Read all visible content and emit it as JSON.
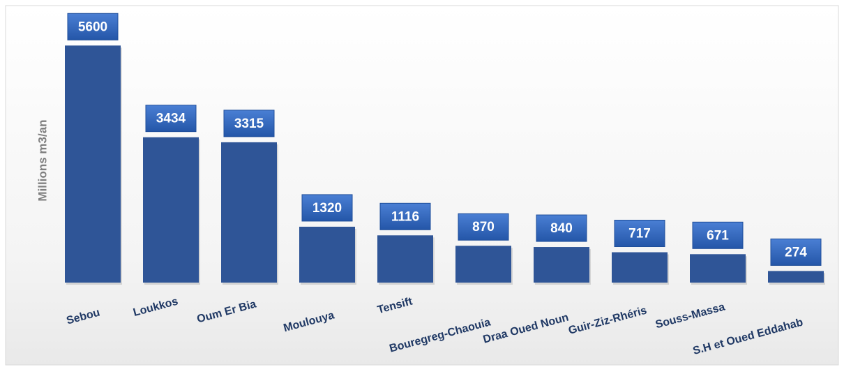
{
  "chart_data": {
    "type": "bar",
    "y_label": "Millions m3/an",
    "categories": [
      "Sebou",
      "Loukkos",
      "Oum Er Bia",
      "Moulouya",
      "Tensift",
      "Bouregreg-Chaouia",
      "Draa Oued Noun",
      "Guir-Ziz-Rhéris",
      "Souss-Massa",
      "S.H et Oued Eddahab"
    ],
    "values": [
      5600,
      3434,
      3315,
      1320,
      1116,
      870,
      840,
      717,
      671,
      274
    ],
    "color": "#2f5597",
    "ylim": [
      0,
      6000
    ]
  }
}
